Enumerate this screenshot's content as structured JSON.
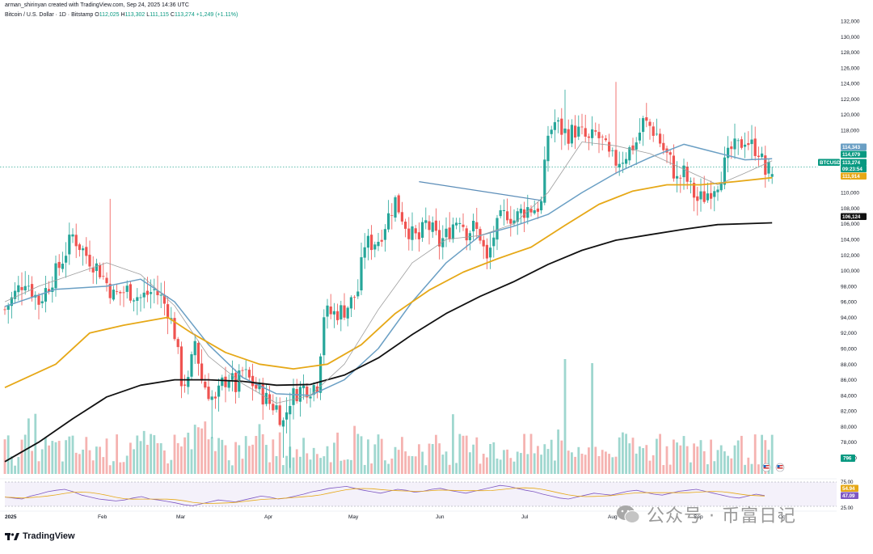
{
  "header": {
    "credit": "arman_shirinyan created with TradingView.com, Sep 24, 2025 14:36 UTC",
    "symbol": "Bitcoin / U.S. Dollar · 1D · Bitstamp",
    "o_label": "O",
    "o": "112,025",
    "h_label": "H",
    "h": "113,302",
    "l_label": "L",
    "l": "111,115",
    "c_label": "C",
    "c": "113,274",
    "change": "+1,249 (+1.11%)"
  },
  "brand": {
    "name": "TradingView"
  },
  "watermark": {
    "text": "公众号 · 币富日记"
  },
  "colors": {
    "up": "#26a69a",
    "down": "#ef5350",
    "ma_fast": "#9e9e9e",
    "ma_mid": "#6a9fc4",
    "ma_slow": "#e6a817",
    "ma_200": "#111111",
    "trendline": "#5b8db8",
    "rsi_line": "#7e57c2",
    "rsi_ma": "#e6a817"
  },
  "chart_data": {
    "type": "candlestick",
    "title": "Bitcoin / U.S. Dollar · 1D · Bitstamp",
    "xlabel": "",
    "ylabel": "",
    "ylim": [
      74000,
      133000
    ],
    "price_ticks": [
      "132,000",
      "130,000",
      "128,000",
      "126,000",
      "124,000",
      "122,000",
      "120,000",
      "118,000",
      "116,000",
      "114,000",
      "112,000",
      "110,000",
      "108,000",
      "106,000",
      "104,000",
      "102,000",
      "100,000",
      "98,000",
      "96,000",
      "94,000",
      "92,000",
      "90,000",
      "88,000",
      "86,000",
      "84,000",
      "82,000",
      "80,000",
      "78,000",
      "76,000"
    ],
    "x_labels": [
      "2025",
      "Feb",
      "Mar",
      "Apr",
      "May",
      "Jun",
      "Jul",
      "Aug",
      "Sep",
      "Oct"
    ],
    "price_tags": [
      {
        "label": "114,343",
        "value": 114343,
        "color": "#6a9fc4"
      },
      {
        "label": "114,079",
        "value": 114079,
        "color": "#089981"
      },
      {
        "label": "BTCUSD",
        "value": 113274,
        "color": "#089981"
      },
      {
        "label": "113,274",
        "value": 113274,
        "color": "#089981"
      },
      {
        "label": "09:23:54",
        "value": 112750,
        "color": "#089981"
      },
      {
        "label": "111,914",
        "value": 111914,
        "color": "#e6a817"
      },
      {
        "label": "106,124",
        "value": 106124,
        "color": "#111111"
      }
    ],
    "volume_tag": "796",
    "rsi": {
      "ticks": [
        "75.00",
        "25.00"
      ],
      "tags": [
        {
          "label": "54.94",
          "color": "#e6a817"
        },
        {
          "label": "47.09",
          "color": "#7e57c2"
        }
      ],
      "values": [
        44,
        42,
        40,
        46,
        50,
        55,
        58,
        60,
        55,
        48,
        44,
        40,
        38,
        36,
        38,
        42,
        45,
        40,
        38,
        35,
        32,
        28,
        26,
        30,
        34,
        38,
        36,
        34,
        38,
        42,
        46,
        44,
        40,
        42,
        46,
        50,
        55,
        58,
        62,
        64,
        66,
        62,
        58,
        55,
        52,
        56,
        60,
        58,
        54,
        56,
        60,
        62,
        58,
        55,
        52,
        56,
        60,
        64,
        68,
        66,
        62,
        58,
        55,
        50,
        46,
        42,
        40,
        44,
        48,
        52,
        50,
        48,
        52,
        56,
        58,
        54,
        50,
        48,
        52,
        56,
        58,
        60,
        56,
        52,
        48,
        44,
        42,
        46,
        50,
        47
      ]
    },
    "ma_series": [
      {
        "name": "",
        "color": "#6a9fc4",
        "points": [
          [
            0,
            95400
          ],
          [
            15,
            97600
          ],
          [
            30,
            98000
          ],
          [
            40,
            98900
          ],
          [
            50,
            96000
          ],
          [
            60,
            90500
          ],
          [
            70,
            86300
          ],
          [
            80,
            84200
          ],
          [
            90,
            84000
          ],
          [
            100,
            86000
          ],
          [
            110,
            90000
          ],
          [
            120,
            96000
          ],
          [
            130,
            101000
          ],
          [
            140,
            104500
          ],
          [
            150,
            105700
          ],
          [
            160,
            107200
          ],
          [
            170,
            110000
          ],
          [
            180,
            112500
          ],
          [
            190,
            114500
          ],
          [
            200,
            116200
          ],
          [
            208,
            115300
          ],
          [
            218,
            114200
          ],
          [
            226,
            114343
          ]
        ]
      },
      {
        "name": "",
        "color": "#e6a817",
        "points": [
          [
            0,
            85000
          ],
          [
            15,
            88000
          ],
          [
            25,
            92000
          ],
          [
            35,
            93000
          ],
          [
            48,
            94000
          ],
          [
            55,
            92000
          ],
          [
            65,
            89500
          ],
          [
            75,
            88000
          ],
          [
            85,
            87400
          ],
          [
            95,
            88000
          ],
          [
            105,
            90500
          ],
          [
            115,
            94500
          ],
          [
            125,
            97500
          ],
          [
            135,
            99800
          ],
          [
            145,
            101500
          ],
          [
            155,
            103000
          ],
          [
            165,
            105800
          ],
          [
            175,
            108500
          ],
          [
            185,
            110200
          ],
          [
            195,
            111000
          ],
          [
            205,
            111000
          ],
          [
            215,
            111400
          ],
          [
            226,
            111914
          ]
        ]
      },
      {
        "name": "",
        "color": "#111111",
        "points": [
          [
            0,
            75500
          ],
          [
            10,
            78000
          ],
          [
            20,
            81000
          ],
          [
            30,
            83800
          ],
          [
            40,
            85300
          ],
          [
            50,
            86000
          ],
          [
            60,
            86000
          ],
          [
            70,
            85800
          ],
          [
            80,
            85300
          ],
          [
            90,
            85400
          ],
          [
            100,
            86600
          ],
          [
            110,
            88800
          ],
          [
            120,
            91800
          ],
          [
            130,
            94500
          ],
          [
            140,
            96700
          ],
          [
            150,
            98600
          ],
          [
            160,
            100800
          ],
          [
            170,
            102600
          ],
          [
            180,
            103900
          ],
          [
            190,
            104600
          ],
          [
            200,
            105300
          ],
          [
            210,
            105900
          ],
          [
            226,
            106124
          ]
        ]
      },
      {
        "name": "",
        "color": "#9e9e9e",
        "points": [
          [
            0,
            96000
          ],
          [
            10,
            98000
          ],
          [
            20,
            99500
          ],
          [
            30,
            101000
          ],
          [
            40,
            99500
          ],
          [
            50,
            95500
          ],
          [
            60,
            89000
          ],
          [
            70,
            85500
          ],
          [
            80,
            83000
          ],
          [
            90,
            84000
          ],
          [
            100,
            88000
          ],
          [
            110,
            95000
          ],
          [
            120,
            101000
          ],
          [
            130,
            104000
          ],
          [
            140,
            104500
          ],
          [
            150,
            106000
          ],
          [
            160,
            110000
          ],
          [
            170,
            116500
          ],
          [
            180,
            116000
          ],
          [
            190,
            115000
          ],
          [
            200,
            113000
          ],
          [
            210,
            111000
          ],
          [
            218,
            112500
          ],
          [
            226,
            114079
          ]
        ]
      }
    ],
    "trendline": {
      "from": [
        122,
        111400
      ],
      "to": [
        158,
        109000
      ]
    }
  }
}
